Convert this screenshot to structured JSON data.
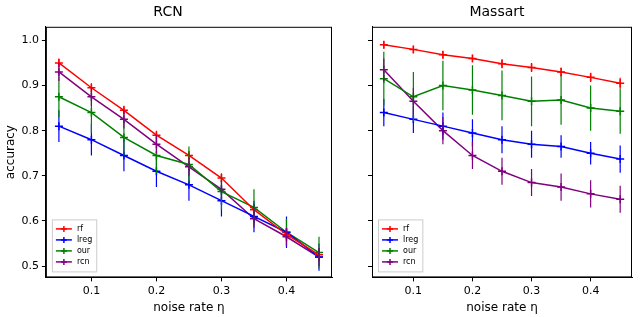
{
  "chart_data": [
    {
      "type": "line",
      "title": "RCN",
      "xlabel": "noise rate η",
      "ylabel": "accuracy",
      "x": [
        0.05,
        0.1,
        0.15,
        0.2,
        0.25,
        0.3,
        0.35,
        0.4,
        0.45
      ],
      "xlim": [
        0.03,
        0.47
      ],
      "xticks": [
        0.1,
        0.2,
        0.3,
        0.4
      ],
      "ylim": [
        0.475,
        1.03
      ],
      "yticks": [
        0.5,
        0.6,
        0.7,
        0.8,
        0.9,
        {
          "value": 1,
          "label": "1.0"
        }
      ],
      "grid": false,
      "legend": "lower left",
      "marker": "plus",
      "series": [
        {
          "name": "rf",
          "color": "#ff0000",
          "values": [
            0.95,
            0.895,
            0.845,
            0.79,
            0.745,
            0.695,
            0.625,
            0.57,
            0.525
          ],
          "errors": [
            0.01,
            0.01,
            0.01,
            0.01,
            0.01,
            0.01,
            0.01,
            0.01,
            0.01
          ]
        },
        {
          "name": "lreg",
          "color": "#0000ff",
          "values": [
            0.81,
            0.78,
            0.745,
            0.71,
            0.68,
            0.645,
            0.61,
            0.575,
            0.52
          ],
          "errors": [
            0.035,
            0.035,
            0.035,
            0.035,
            0.035,
            0.035,
            0.035,
            0.035,
            0.03
          ]
        },
        {
          "name": "our",
          "color": "#008000",
          "values": [
            0.875,
            0.84,
            0.785,
            0.745,
            0.725,
            0.665,
            0.63,
            0.575,
            0.53
          ],
          "errors": [
            0.045,
            0.045,
            0.04,
            0.04,
            0.04,
            0.04,
            0.04,
            0.03,
            0.035
          ]
        },
        {
          "name": "rcn",
          "color": "#800080",
          "values": [
            0.93,
            0.875,
            0.825,
            0.77,
            0.72,
            0.67,
            0.605,
            0.565,
            0.52
          ],
          "errors": [
            0.02,
            0.02,
            0.02,
            0.02,
            0.02,
            0.02,
            0.02,
            0.02,
            0.02
          ]
        }
      ]
    },
    {
      "type": "line",
      "title": "Massart",
      "xlabel": "noise rate η",
      "x": [
        0.05,
        0.1,
        0.15,
        0.2,
        0.25,
        0.3,
        0.35,
        0.4,
        0.45
      ],
      "xlim": [
        0.03,
        0.47
      ],
      "xticks": [
        0.1,
        0.2,
        0.3,
        0.4
      ],
      "ylim": [
        0.475,
        1.03
      ],
      "yticks": [
        0.5,
        0.6,
        0.7,
        0.8,
        0.9,
        1
      ],
      "tick_labels": "x",
      "grid": false,
      "legend": "lower left",
      "marker": "plus",
      "series": [
        {
          "name": "rf",
          "color": "#ff0000",
          "values": [
            0.99,
            0.98,
            0.968,
            0.96,
            0.948,
            0.94,
            0.93,
            0.918,
            0.905
          ],
          "errors": [
            0.008,
            0.008,
            0.008,
            0.008,
            0.01,
            0.01,
            0.01,
            0.01,
            0.012
          ]
        },
        {
          "name": "lreg",
          "color": "#0000ff",
          "values": [
            0.84,
            0.825,
            0.81,
            0.795,
            0.78,
            0.77,
            0.765,
            0.75,
            0.737
          ],
          "errors": [
            0.03,
            0.03,
            0.03,
            0.03,
            0.03,
            0.03,
            0.025,
            0.025,
            0.03
          ]
        },
        {
          "name": "our",
          "color": "#008000",
          "values": [
            0.915,
            0.875,
            0.9,
            0.89,
            0.878,
            0.865,
            0.868,
            0.85,
            0.843
          ],
          "errors": [
            0.06,
            0.055,
            0.055,
            0.055,
            0.055,
            0.055,
            0.055,
            0.05,
            0.05
          ]
        },
        {
          "name": "rcn",
          "color": "#800080",
          "values": [
            0.935,
            0.865,
            0.8,
            0.745,
            0.71,
            0.685,
            0.675,
            0.66,
            0.648
          ],
          "errors": [
            0.025,
            0.03,
            0.03,
            0.03,
            0.03,
            0.03,
            0.03,
            0.03,
            0.03
          ]
        }
      ]
    }
  ]
}
